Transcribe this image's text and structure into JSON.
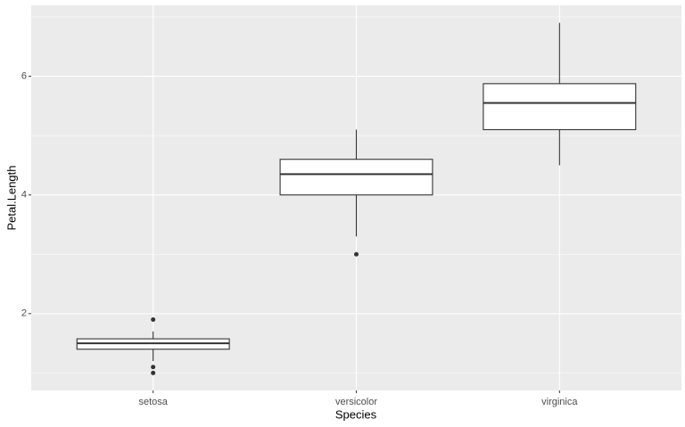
{
  "chart_data": {
    "type": "box",
    "x_label": "Species",
    "y_label": "Petal.Length",
    "categories": [
      "setosa",
      "versicolor",
      "virginica"
    ],
    "boxes": [
      {
        "low": 1.2,
        "q1": 1.4,
        "median": 1.5,
        "q3": 1.575,
        "high": 1.7,
        "outliers": [
          1.0,
          1.1,
          1.9
        ]
      },
      {
        "low": 3.3,
        "q1": 4.0,
        "median": 4.35,
        "q3": 4.6,
        "high": 5.1,
        "outliers": [
          3.0
        ]
      },
      {
        "low": 4.5,
        "q1": 5.1,
        "median": 5.55,
        "q3": 5.875,
        "high": 6.9,
        "outliers": []
      }
    ],
    "box_fill": "#ffffff",
    "box_stroke": "#333333",
    "panel_color": "#ebebeb",
    "ylim": [
      0.705,
      7.195
    ],
    "yticks": [
      2,
      4,
      6
    ],
    "minor_yticks": [
      1,
      3,
      5,
      7
    ],
    "grid": true
  }
}
